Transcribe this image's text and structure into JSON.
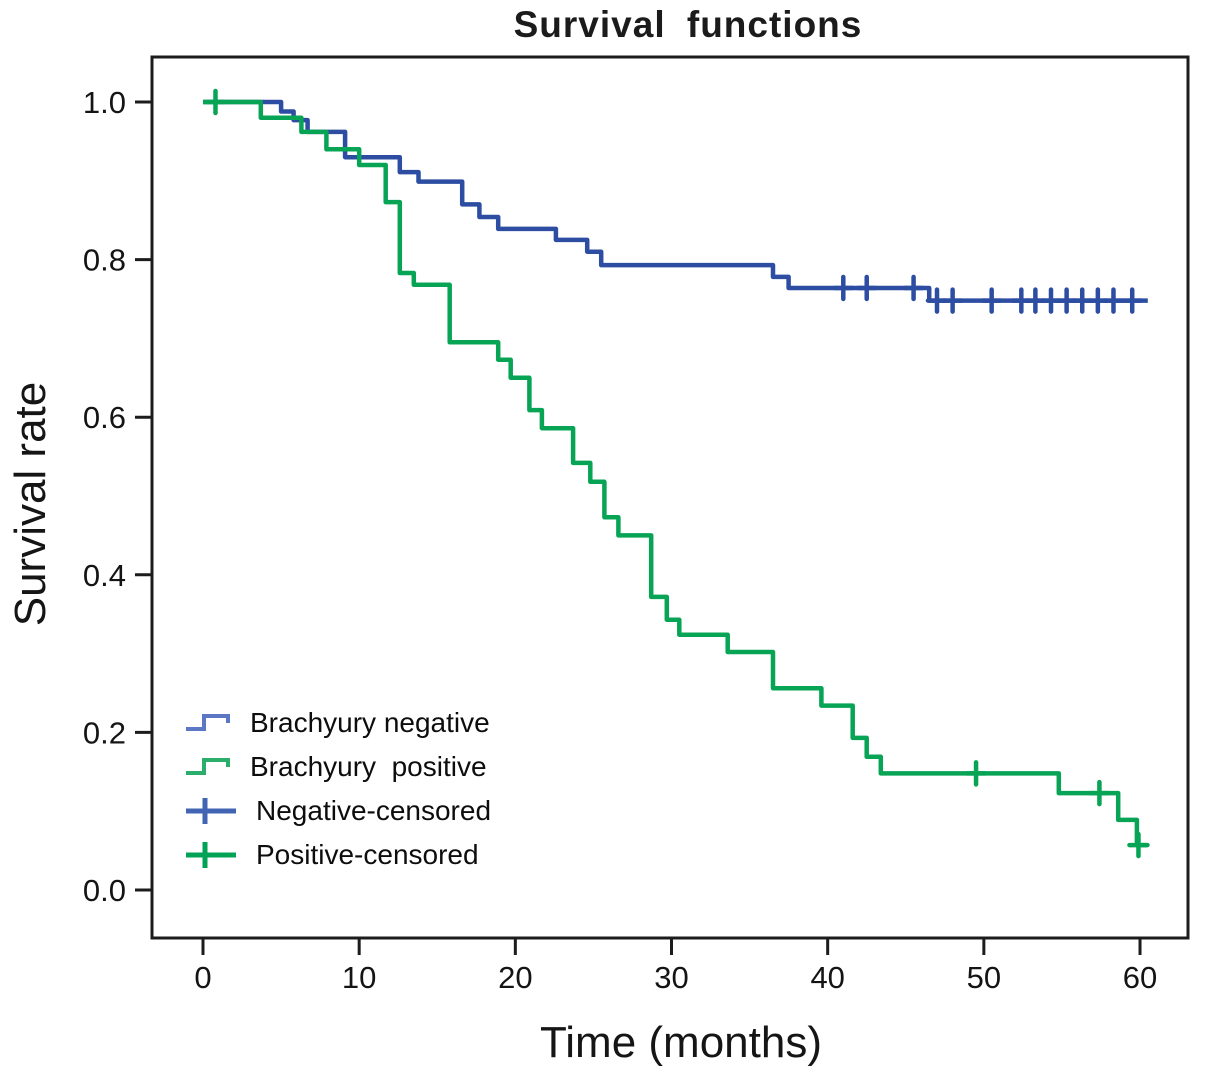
{
  "figure": {
    "title": "Survival functions",
    "x_axis_label": "Time (months)",
    "y_axis_label": "Survival rate"
  },
  "legend": {
    "items": [
      {
        "label": "Brachyury negative",
        "type": "step-line",
        "color": "#5c78c5"
      },
      {
        "label": "Brachyury  positive",
        "type": "step-line",
        "color": "#2bae6c"
      },
      {
        "label": "Negative-censored",
        "type": "censor-plus",
        "color": "#4164b3"
      },
      {
        "label": "Positive-censored",
        "type": "censor-plus",
        "color": "#00a355"
      }
    ]
  },
  "chart_data": {
    "type": "line",
    "subtype": "kaplan-meier-step",
    "title": "Survival functions",
    "xlabel": "Time (months)",
    "ylabel": "Survival rate",
    "xlim": [
      0,
      63
    ],
    "ylim": [
      0,
      1.05
    ],
    "xticks": [
      0,
      10,
      20,
      30,
      40,
      50,
      60
    ],
    "yticks": [
      0.0,
      0.2,
      0.4,
      0.6,
      0.8,
      1.0
    ],
    "grid": false,
    "legend_position": "lower-left-inside",
    "series": [
      {
        "name": "Brachyury negative",
        "color": "#2c4da2",
        "steps": [
          [
            0,
            1.0
          ],
          [
            5.0,
            0.988
          ],
          [
            5.8,
            0.977
          ],
          [
            6.7,
            0.962
          ],
          [
            9.1,
            0.93
          ],
          [
            12.6,
            0.911
          ],
          [
            13.8,
            0.899
          ],
          [
            16.6,
            0.87
          ],
          [
            17.7,
            0.854
          ],
          [
            18.9,
            0.839
          ],
          [
            22.6,
            0.825
          ],
          [
            24.6,
            0.81
          ],
          [
            25.5,
            0.793
          ],
          [
            36.5,
            0.778
          ],
          [
            37.5,
            0.764
          ],
          [
            46.5,
            0.748
          ],
          [
            60.5,
            0.748
          ]
        ],
        "censored": [
          [
            41,
            0.764
          ],
          [
            42.5,
            0.764
          ],
          [
            45.5,
            0.764
          ],
          [
            47,
            0.748
          ],
          [
            48,
            0.748
          ],
          [
            50.5,
            0.748
          ],
          [
            52.4,
            0.748
          ],
          [
            53.3,
            0.748
          ],
          [
            54.3,
            0.748
          ],
          [
            55.3,
            0.748
          ],
          [
            56.3,
            0.748
          ],
          [
            57.3,
            0.748
          ],
          [
            58.3,
            0.748
          ],
          [
            59.5,
            0.748
          ]
        ]
      },
      {
        "name": "Brachyury positive",
        "color": "#07a455",
        "steps": [
          [
            0,
            1.0
          ],
          [
            3.7,
            0.98
          ],
          [
            6.3,
            0.962
          ],
          [
            7.9,
            0.94
          ],
          [
            10.0,
            0.92
          ],
          [
            11.7,
            0.873
          ],
          [
            12.6,
            0.783
          ],
          [
            13.5,
            0.768
          ],
          [
            15.8,
            0.695
          ],
          [
            18.9,
            0.673
          ],
          [
            19.7,
            0.65
          ],
          [
            20.9,
            0.609
          ],
          [
            21.7,
            0.586
          ],
          [
            23.7,
            0.542
          ],
          [
            24.8,
            0.518
          ],
          [
            25.7,
            0.473
          ],
          [
            26.6,
            0.45
          ],
          [
            28.7,
            0.372
          ],
          [
            29.7,
            0.343
          ],
          [
            30.5,
            0.324
          ],
          [
            33.6,
            0.302
          ],
          [
            36.5,
            0.256
          ],
          [
            39.6,
            0.234
          ],
          [
            41.6,
            0.193
          ],
          [
            42.5,
            0.169
          ],
          [
            43.4,
            0.148
          ],
          [
            54.8,
            0.123
          ],
          [
            58.6,
            0.089
          ],
          [
            59.8,
            0.057
          ],
          [
            60.4,
            0.057
          ]
        ],
        "censored": [
          [
            0.8,
            1.0
          ],
          [
            49.5,
            0.148
          ],
          [
            57.4,
            0.123
          ],
          [
            59.9,
            0.057
          ]
        ]
      }
    ]
  }
}
